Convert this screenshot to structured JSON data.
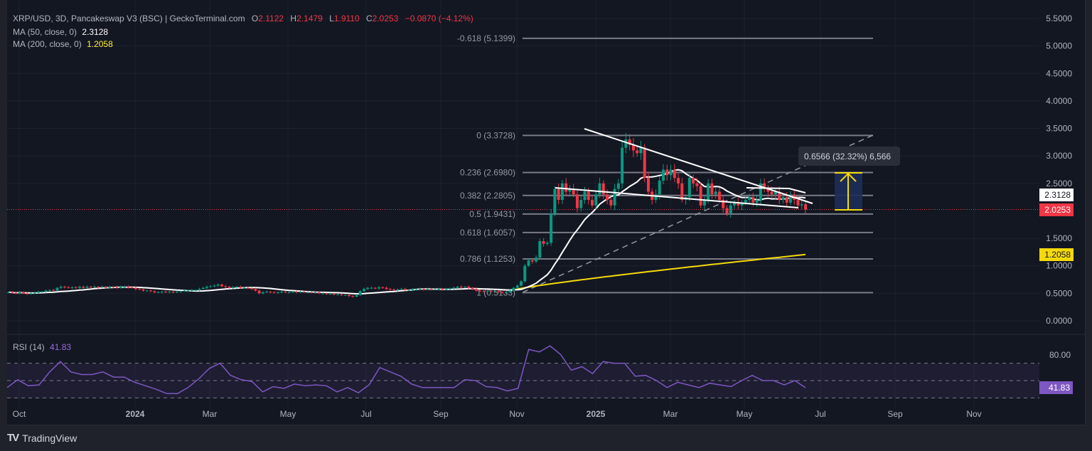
{
  "header": {
    "symbol": "XRP/USD, 3D, Pancakeswap V3 (BSC) | GeckoTerminal.com",
    "o_label": "O",
    "o": "2.1122",
    "h_label": "H",
    "h": "2.1479",
    "l_label": "L",
    "l": "1.9110",
    "c_label": "C",
    "c": "2.0253",
    "change": "−0.0870 (−4.12%)",
    "ma50_label": "MA (50, close, 0)",
    "ma50_value": "2.3128",
    "ma200_label": "MA (200, close, 0)",
    "ma200_value": "1.2058"
  },
  "rsi_header": {
    "label": "RSI (14)",
    "value": "41.83"
  },
  "measure_label": "0.6566 (32.32%) 6,566",
  "branding": {
    "logo_text": "TradingView"
  },
  "colors": {
    "up": "#089981",
    "down": "#f23645",
    "ma50": "#ffffff",
    "ma200": "#f5d90a",
    "rsi": "#7e57c2",
    "background": "#131722"
  },
  "chart_data": [
    {
      "type": "candlestick",
      "title": "XRP/USD, 3D",
      "y_ticks": [
        "5.5000",
        "5.0000",
        "4.5000",
        "4.0000",
        "3.5000",
        "3.0000",
        "2.5000",
        "1.5000",
        "1.0000",
        "0.5000",
        "0.0000"
      ],
      "ylim": [
        0,
        5.5
      ],
      "x_ticks": [
        "Oct",
        "2024",
        "Mar",
        "May",
        "Jul",
        "Sep",
        "Nov",
        "2025",
        "Mar",
        "May",
        "Jul",
        "Sep",
        "Nov"
      ],
      "closes": [
        0.52,
        0.51,
        0.5,
        0.52,
        0.5,
        0.49,
        0.5,
        0.51,
        0.53,
        0.53,
        0.55,
        0.56,
        0.55,
        0.6,
        0.62,
        0.61,
        0.6,
        0.61,
        0.6,
        0.62,
        0.6,
        0.62,
        0.61,
        0.62,
        0.61,
        0.62,
        0.6,
        0.62,
        0.61,
        0.6,
        0.62,
        0.62,
        0.61,
        0.6,
        0.58,
        0.57,
        0.55,
        0.55,
        0.54,
        0.52,
        0.52,
        0.53,
        0.52,
        0.53,
        0.52,
        0.53,
        0.54,
        0.55,
        0.55,
        0.56,
        0.56,
        0.58,
        0.6,
        0.62,
        0.63,
        0.64,
        0.66,
        0.63,
        0.62,
        0.6,
        0.61,
        0.62,
        0.6,
        0.6,
        0.59,
        0.58,
        0.55,
        0.5,
        0.52,
        0.53,
        0.52,
        0.51,
        0.52,
        0.53,
        0.52,
        0.52,
        0.53,
        0.52,
        0.53,
        0.52,
        0.52,
        0.51,
        0.52,
        0.5,
        0.5,
        0.49,
        0.49,
        0.48,
        0.48,
        0.47,
        0.47,
        0.45,
        0.44,
        0.47,
        0.54,
        0.58,
        0.6,
        0.6,
        0.59,
        0.61,
        0.6,
        0.58,
        0.57,
        0.56,
        0.57,
        0.58,
        0.56,
        0.56,
        0.57,
        0.57,
        0.58,
        0.57,
        0.58,
        0.57,
        0.57,
        0.58,
        0.57,
        0.58,
        0.59,
        0.6,
        0.62,
        0.61,
        0.62,
        0.6,
        0.58,
        0.55,
        0.54,
        0.53,
        0.54,
        0.53,
        0.54,
        0.52,
        0.51,
        0.52,
        0.55,
        0.6,
        0.64,
        0.72,
        1.0,
        1.1,
        1.08,
        1.15,
        1.45,
        1.4,
        1.42,
        1.95,
        2.4,
        2.2,
        2.5,
        2.35,
        2.4,
        2.3,
        2.05,
        2.2,
        2.35,
        2.2,
        2.1,
        2.3,
        2.5,
        2.3,
        2.2,
        2.1,
        2.4,
        2.5,
        3.15,
        3.3,
        3.2,
        3.1,
        3.05,
        3.15,
        2.6,
        2.35,
        2.2,
        2.3,
        2.55,
        2.75,
        2.65,
        2.75,
        2.6,
        2.5,
        2.2,
        2.25,
        2.6,
        2.5,
        2.45,
        2.1,
        2.2,
        2.5,
        2.3,
        2.35,
        2.2,
        2.05,
        1.95,
        2.1,
        2.15,
        2.1,
        2.15,
        2.2,
        2.25,
        2.15,
        2.2,
        2.5,
        2.4,
        2.35,
        2.3,
        2.35,
        2.2,
        2.25,
        2.15,
        2.3,
        2.2,
        2.1,
        2.12,
        2.0253
      ],
      "last_price": "2.0253",
      "ma50_last": "2.3128",
      "ma200_last": "1.2058",
      "fib_levels": [
        {
          "label": "-0.618 (5.1399)",
          "value": 5.1399
        },
        {
          "label": "0 (3.3728)",
          "value": 3.3728
        },
        {
          "label": "0.236 (2.6980)",
          "value": 2.698
        },
        {
          "label": "0.382 (2.2805)",
          "value": 2.2805
        },
        {
          "label": "0.5 (1.9431)",
          "value": 1.9431
        },
        {
          "label": "0.618 (1.6057)",
          "value": 1.6057
        },
        {
          "label": "0.786 (1.1253)",
          "value": 1.1253
        },
        {
          "label": "1 (0.5133)",
          "value": 0.5133
        }
      ],
      "measure": {
        "from": 2.0253,
        "to": 2.6819,
        "label": "0.6566 (32.32%) 6,566"
      }
    },
    {
      "type": "line",
      "title": "RSI (14)",
      "y_ticks": [
        "80.00"
      ],
      "bands": [
        70,
        50,
        30
      ],
      "last_value": "41.83",
      "values": [
        42,
        51,
        44,
        45,
        60,
        72,
        60,
        57,
        57,
        60,
        54,
        54,
        48,
        44,
        40,
        35,
        35,
        42,
        52,
        64,
        70,
        56,
        51,
        49,
        37,
        43,
        41,
        46,
        44,
        45,
        44,
        37,
        42,
        36,
        45,
        65,
        60,
        55,
        46,
        42,
        42,
        42,
        42,
        51,
        50,
        43,
        42,
        38,
        41,
        86,
        83,
        90,
        80,
        62,
        66,
        58,
        72,
        70,
        70,
        55,
        56,
        50,
        42,
        48,
        45,
        42,
        47,
        45,
        43,
        50,
        56,
        50,
        50,
        45,
        50,
        41.83
      ]
    }
  ]
}
